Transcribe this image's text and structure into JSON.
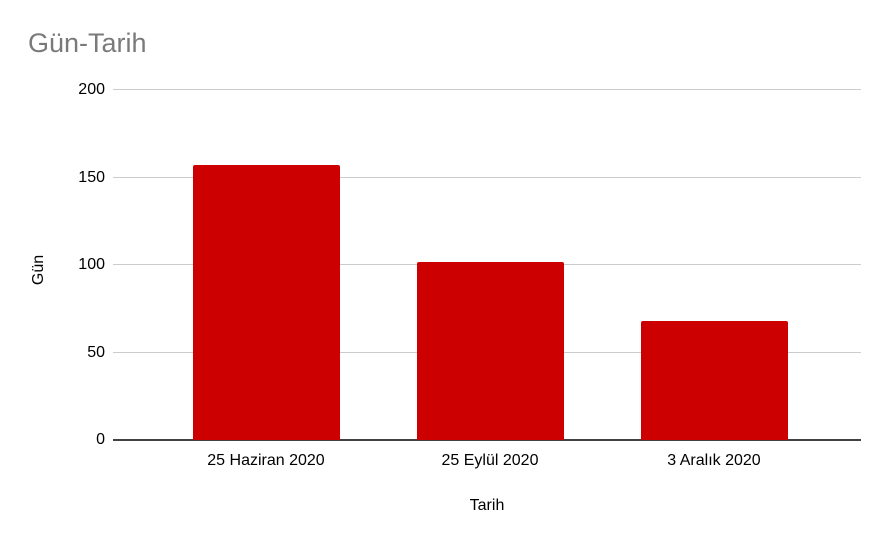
{
  "chart_data": {
    "type": "bar",
    "title": "Gün-Tarih",
    "xlabel": "Tarih",
    "ylabel": "Gün",
    "categories": [
      "25 Haziran 2020",
      "25 Eylül 2020",
      "3 Aralık 2020"
    ],
    "values": [
      157,
      102,
      68
    ],
    "ylim": [
      0,
      200
    ],
    "yticks": [
      0,
      50,
      100,
      150,
      200
    ],
    "grid": true,
    "legend_position": "none",
    "bar_color": "#cc0000",
    "title_color": "#7a7a7a",
    "axis_text_color": "#000000",
    "gridline_color": "#cccccc",
    "baseline_color": "#424242",
    "background_color": "#ffffff"
  }
}
